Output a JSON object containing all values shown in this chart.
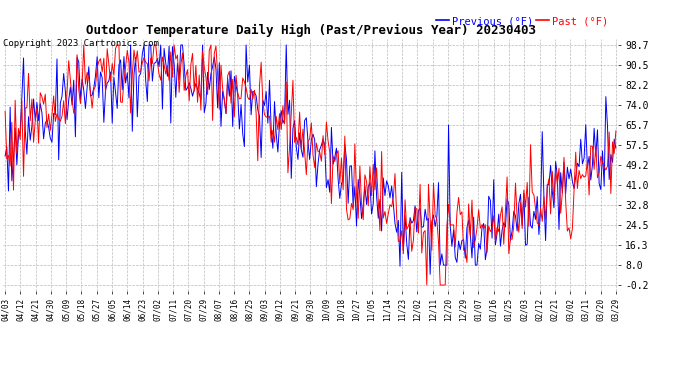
{
  "title": "Outdoor Temperature Daily High (Past/Previous Year) 20230403",
  "copyright": "Copyright 2023 Cartronics.com",
  "legend_previous": "Previous (°F)",
  "legend_past": "Past (°F)",
  "color_previous": "blue",
  "color_past": "red",
  "yticks": [
    98.7,
    90.5,
    82.2,
    74.0,
    65.7,
    57.5,
    49.2,
    41.0,
    32.8,
    24.5,
    16.3,
    8.0,
    -0.2
  ],
  "ylim_min": -2.5,
  "ylim_max": 101.0,
  "xtick_labels": [
    "04/03",
    "04/12",
    "04/21",
    "04/30",
    "05/09",
    "05/18",
    "05/27",
    "06/05",
    "06/14",
    "06/23",
    "07/02",
    "07/11",
    "07/20",
    "07/29",
    "08/07",
    "08/16",
    "08/25",
    "09/03",
    "09/12",
    "09/21",
    "09/30",
    "10/09",
    "10/18",
    "10/27",
    "11/05",
    "11/14",
    "11/23",
    "12/02",
    "12/11",
    "12/20",
    "12/29",
    "01/07",
    "01/16",
    "01/25",
    "02/03",
    "02/12",
    "02/21",
    "03/02",
    "03/11",
    "03/20",
    "03/29"
  ],
  "background_color": "#ffffff",
  "grid_color": "#bbbbbb",
  "title_fontsize": 9,
  "copyright_fontsize": 6.5,
  "legend_fontsize": 7.5,
  "ytick_fontsize": 7,
  "xtick_fontsize": 5.5,
  "linewidth": 0.7,
  "n_days": 366
}
